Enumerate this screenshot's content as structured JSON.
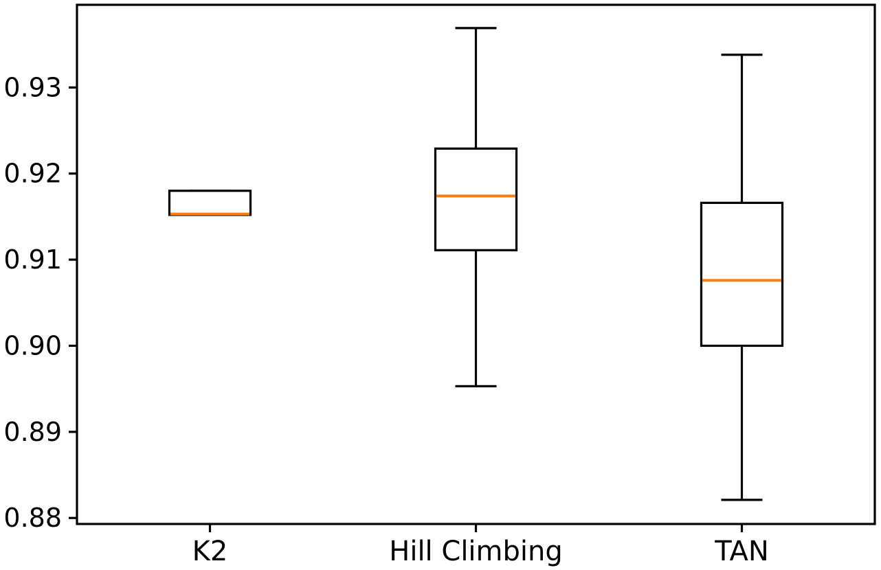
{
  "figure": {
    "title": "",
    "background": "#ffffff"
  },
  "chart_data": {
    "type": "boxplot",
    "title": "",
    "xlabel": "",
    "ylabel": "",
    "categories": [
      "K2",
      "Hill Climbing",
      "TAN"
    ],
    "series": [
      {
        "name": "K2",
        "whislo": 0.9152,
        "q1": 0.9152,
        "med": 0.9153,
        "q3": 0.918,
        "whishi": 0.918,
        "fliers": []
      },
      {
        "name": "Hill Climbing",
        "whislo": 0.8953,
        "q1": 0.9111,
        "med": 0.9174,
        "q3": 0.9229,
        "whishi": 0.9369,
        "fliers": []
      },
      {
        "name": "TAN",
        "whislo": 0.8821,
        "q1": 0.9,
        "med": 0.9076,
        "q3": 0.9166,
        "whishi": 0.9338,
        "fliers": []
      }
    ],
    "positions": [
      1,
      2,
      3
    ],
    "xlim": [
      0.5,
      3.5
    ],
    "ylim": [
      0.8793,
      0.9396
    ],
    "yticks": [
      0.88,
      0.89,
      0.9,
      0.91,
      0.92,
      0.93
    ],
    "ytick_labels": [
      "0.88",
      "0.89",
      "0.90",
      "0.91",
      "0.92",
      "0.93"
    ],
    "grid": false,
    "legend": null,
    "box_width_units": 0.305,
    "cap_width_units": 0.155,
    "colors": {
      "box_line": "#000000",
      "whisker_line": "#000000",
      "median_line": "#ff7f0e",
      "tick_text": "#000000",
      "spine": "#000000",
      "box_fill": "#ffffff",
      "background": "#ffffff"
    }
  }
}
